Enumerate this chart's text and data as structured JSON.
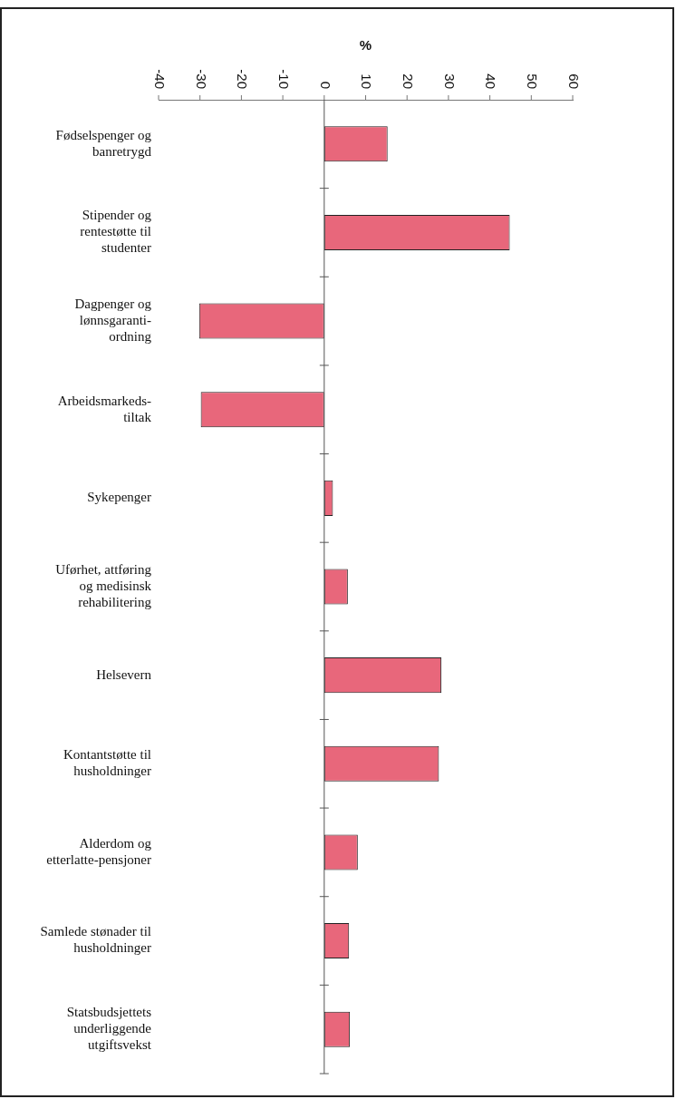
{
  "chart_data": {
    "type": "bar",
    "orientation": "horizontal",
    "xlabel": "%",
    "categories": [
      "Fødselspenger og\nbanretrygd",
      "Stipender og\nrentestøtte til\nstudenter",
      "Dagpenger og\nlønnsgaranti-\nordning",
      "Arbeidsmarkeds-\ntiltak",
      "Sykepenger",
      "Uførhet, attføring\nog medisinsk\nrehabilitering",
      "Helsevern",
      "Kontantstøtte til\nhusholdninger",
      "Alderdom og\netterlatte-pensjoner",
      "Samlede stønader til\nhusholdninger",
      "Statsbudsjettets\nunderliggende\nutgiftsvekst"
    ],
    "values": [
      15.3,
      44.8,
      -30.2,
      -29.8,
      2.1,
      5.7,
      28.3,
      27.7,
      8.1,
      6,
      6.2
    ],
    "color": "#e8677b",
    "xlim": [
      -40,
      60
    ],
    "xticks": [
      -40,
      -30,
      -20,
      -10,
      0,
      10,
      20,
      30,
      40,
      50,
      60
    ],
    "legend": false
  }
}
